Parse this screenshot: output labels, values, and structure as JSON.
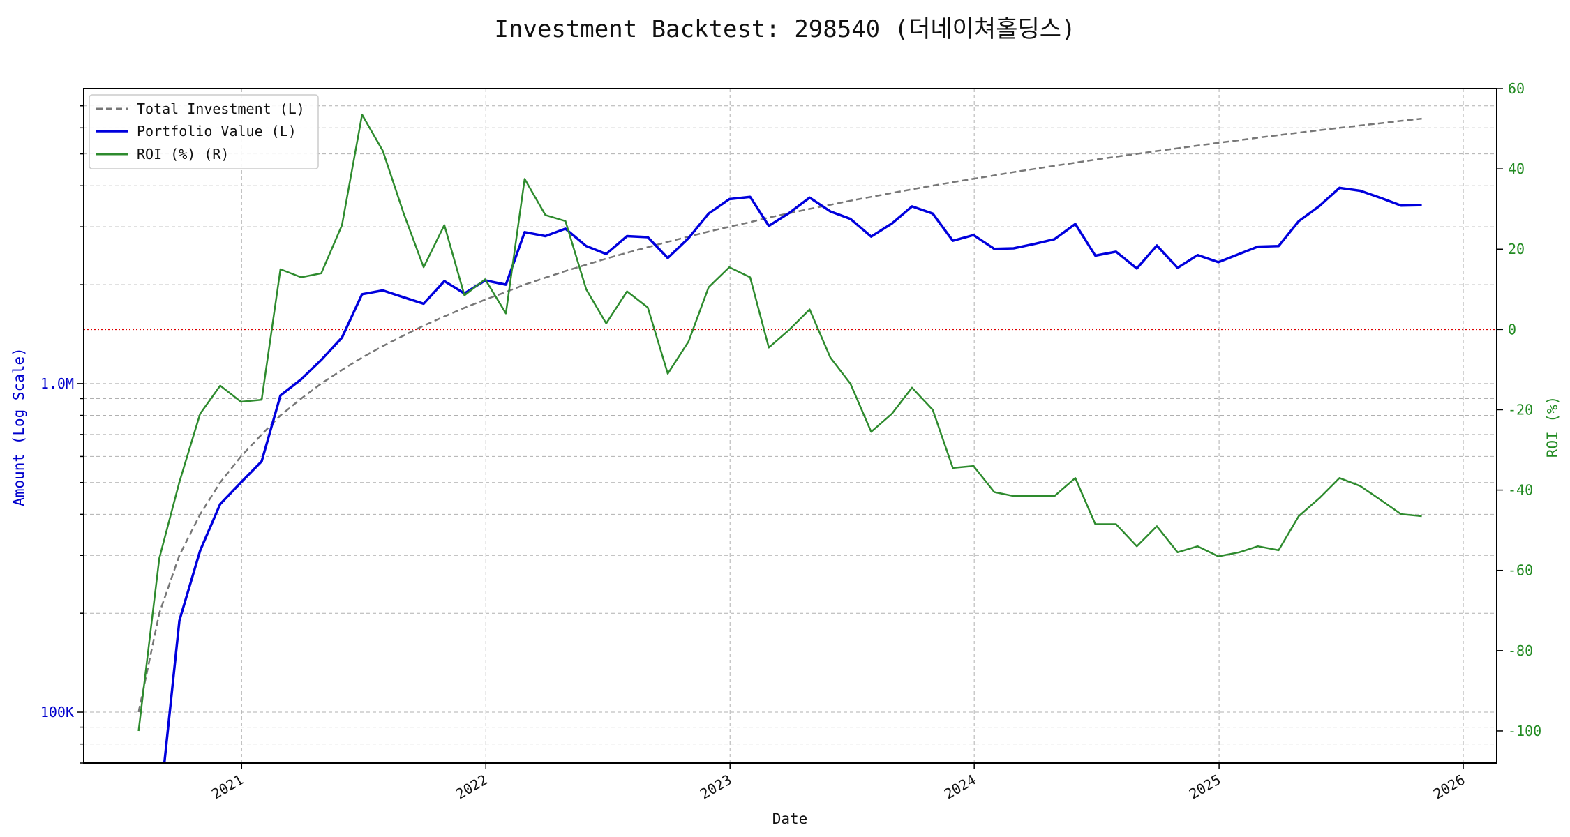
{
  "chart_data": {
    "type": "line",
    "title": "Investment Backtest: 298540 (더네이쳐홀딩스)",
    "xlabel": "Date",
    "ylabel_left": "Amount (Log Scale)",
    "ylabel_right": "ROI (%)",
    "left_scale": "log",
    "left_ylim": [
      70000,
      7900000
    ],
    "right_ylim": [
      -108,
      60
    ],
    "xlim": [
      "2020-05-10",
      "2026-02-20"
    ],
    "x_ticks": [
      "2021",
      "2022",
      "2023",
      "2024",
      "2025",
      "2026"
    ],
    "left_ticks": [
      {
        "value": 100000,
        "label": "100K"
      },
      {
        "value": 1000000,
        "label": "1.0M"
      }
    ],
    "right_ticks": [
      60,
      40,
      20,
      0,
      -20,
      -40,
      -60,
      -80,
      -100
    ],
    "zero_line": {
      "axis": "right",
      "value": 0,
      "color": "#dd0000"
    },
    "grid": true,
    "legend_position": "upper-left",
    "colors": {
      "total": "#777777",
      "portfolio": "#0000dd",
      "roi": "#2e8b2e",
      "left_axis": "#0000cc",
      "right_axis": "#228b22"
    },
    "dates": [
      "2020-07-31",
      "2020-08-31",
      "2020-09-30",
      "2020-10-31",
      "2020-11-30",
      "2020-12-31",
      "2021-01-31",
      "2021-02-28",
      "2021-03-31",
      "2021-04-30",
      "2021-05-31",
      "2021-06-30",
      "2021-07-31",
      "2021-08-31",
      "2021-09-30",
      "2021-10-31",
      "2021-11-30",
      "2021-12-31",
      "2022-01-31",
      "2022-02-28",
      "2022-03-31",
      "2022-04-30",
      "2022-05-31",
      "2022-06-30",
      "2022-07-31",
      "2022-08-31",
      "2022-09-30",
      "2022-10-31",
      "2022-11-30",
      "2022-12-31",
      "2023-01-31",
      "2023-02-28",
      "2023-03-31",
      "2023-04-30",
      "2023-05-31",
      "2023-06-30",
      "2023-07-31",
      "2023-08-31",
      "2023-09-30",
      "2023-10-31",
      "2023-11-30",
      "2023-12-31",
      "2024-01-31",
      "2024-02-29",
      "2024-03-31",
      "2024-04-30",
      "2024-05-31",
      "2024-06-30",
      "2024-07-31",
      "2024-08-31",
      "2024-09-30",
      "2024-10-31",
      "2024-11-30",
      "2024-12-31",
      "2025-01-31",
      "2025-02-28",
      "2025-03-31",
      "2025-04-30",
      "2025-05-31",
      "2025-06-30",
      "2025-07-31",
      "2025-08-31",
      "2025-09-30",
      "2025-10-31"
    ],
    "series": [
      {
        "name": "Total Investment (L)",
        "axis": "left",
        "style": "dashed",
        "values": [
          100000,
          200000,
          300000,
          400000,
          500000,
          600000,
          700000,
          800000,
          900000,
          1000000,
          1100000,
          1200000,
          1300000,
          1400000,
          1500000,
          1600000,
          1700000,
          1800000,
          1900000,
          2000000,
          2100000,
          2200000,
          2300000,
          2400000,
          2500000,
          2600000,
          2700000,
          2800000,
          2900000,
          3000000,
          3100000,
          3200000,
          3300000,
          3400000,
          3500000,
          3600000,
          3700000,
          3800000,
          3900000,
          4000000,
          4100000,
          4200000,
          4300000,
          4400000,
          4500000,
          4600000,
          4700000,
          4800000,
          4900000,
          5000000,
          5100000,
          5200000,
          5300000,
          5400000,
          5500000,
          5600000,
          5700000,
          5800000,
          5900000,
          6000000,
          6100000,
          6200000,
          6300000,
          6400000
        ]
      },
      {
        "name": "Portfolio Value (L)",
        "axis": "left",
        "style": "solid",
        "values": [
          null,
          50000,
          190000,
          310000,
          430000,
          500000,
          580000,
          920000,
          1030000,
          1180000,
          1380000,
          1870000,
          1920000,
          1830000,
          1750000,
          2050000,
          1880000,
          2060000,
          2000000,
          2890000,
          2810000,
          2960000,
          2620000,
          2480000,
          2810000,
          2790000,
          2410000,
          2770000,
          3290000,
          3640000,
          3700000,
          3020000,
          3310000,
          3680000,
          3340000,
          3170000,
          2800000,
          3070000,
          3460000,
          3290000,
          2720000,
          2830000,
          2570000,
          2580000,
          2660000,
          2750000,
          3060000,
          2450000,
          2520000,
          2240000,
          2630000,
          2250000,
          2460000,
          2340000,
          2480000,
          2610000,
          2620000,
          3120000,
          3470000,
          3940000,
          3860000,
          3670000,
          3480000,
          3490000
        ]
      },
      {
        "name": "ROI (%) (R)",
        "axis": "right",
        "style": "solid",
        "values": [
          -100,
          -57,
          -38,
          -21,
          -14,
          -18,
          -17.5,
          15,
          13,
          14,
          26,
          53.5,
          44.5,
          29,
          15.5,
          26,
          8.5,
          12.5,
          4,
          37.5,
          28.5,
          27,
          10,
          1.5,
          9.5,
          5.5,
          -11,
          -3,
          10.5,
          15.5,
          13,
          -4.5,
          0,
          5,
          -7,
          -13.5,
          -25.5,
          -21,
          -14.5,
          -20,
          -34.5,
          -34,
          -40.5,
          -41.5,
          -41.5,
          -41.5,
          -37,
          -48.5,
          -48.5,
          -54,
          -49,
          -55.5,
          -54,
          -56.5,
          -55.5,
          -54,
          -55,
          -46.5,
          -42,
          -37,
          -39,
          -42.5,
          -46,
          -46.5
        ]
      }
    ]
  }
}
